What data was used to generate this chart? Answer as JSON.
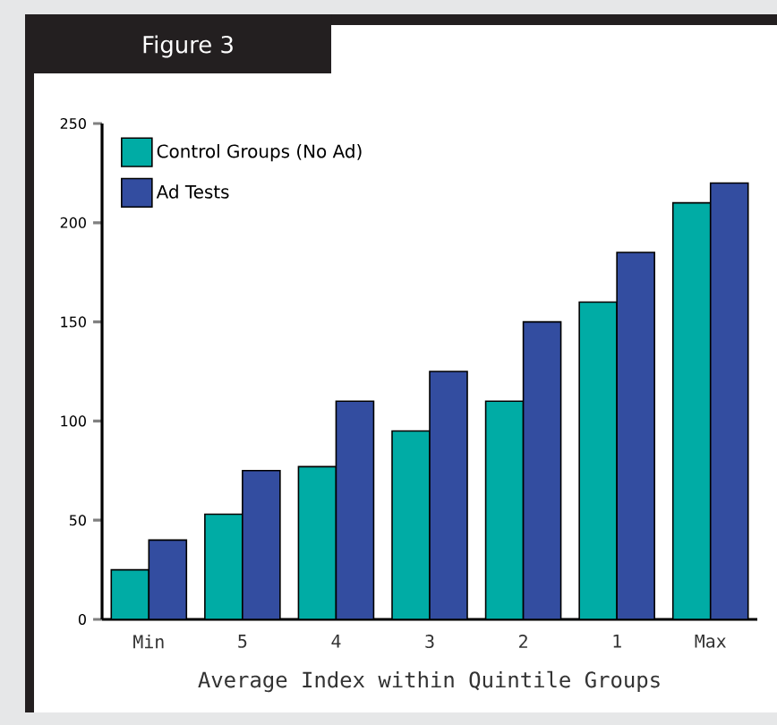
{
  "chart_data": {
    "type": "bar",
    "title": "Figure 3",
    "xlabel": "Average Index within Quintile Groups",
    "categories": [
      "Min",
      "5",
      "4",
      "3",
      "2",
      "1",
      "Max"
    ],
    "series": [
      {
        "name": "Control Groups (No Ad)",
        "color": "#00aca5",
        "values": [
          25,
          53,
          77,
          95,
          110,
          160,
          210
        ]
      },
      {
        "name": "Ad Tests",
        "color": "#334da0",
        "values": [
          40,
          75,
          110,
          125,
          150,
          185,
          220
        ]
      }
    ],
    "ylim": [
      0,
      250
    ],
    "yticks": [
      0,
      50,
      100,
      150,
      200,
      250
    ],
    "grid": false,
    "legend": "top left"
  }
}
